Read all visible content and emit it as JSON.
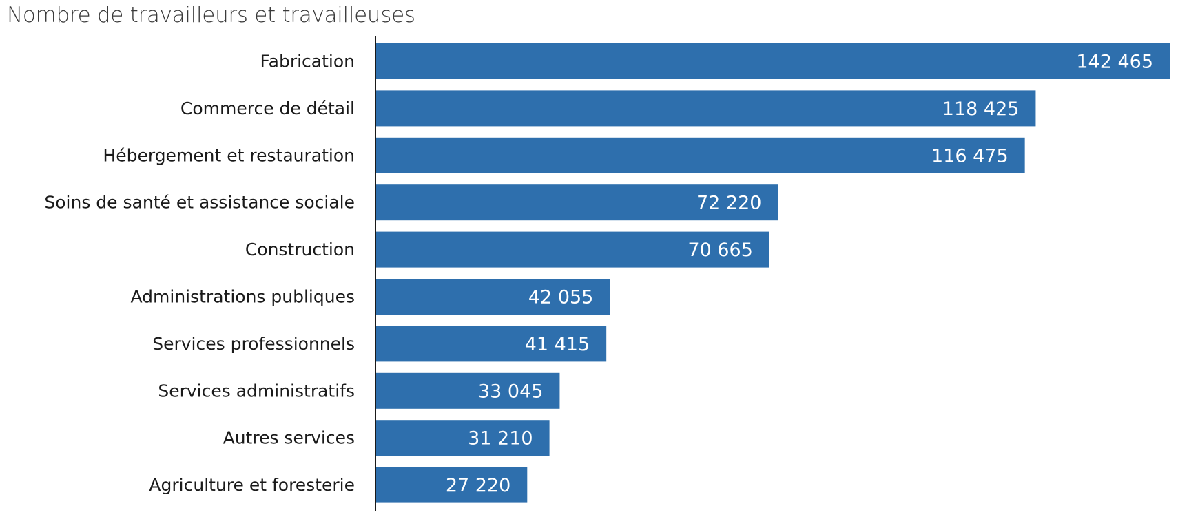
{
  "chart_data": {
    "type": "bar",
    "orientation": "horizontal",
    "title": "Nombre de travailleurs et travailleuses",
    "categories": [
      "Fabrication",
      "Commerce de détail",
      "Hébergement et restauration",
      "Soins de santé et assistance sociale",
      "Construction",
      "Administrations publiques",
      "Services professionnels",
      "Services administratifs",
      "Autres services",
      "Agriculture et foresterie"
    ],
    "values": [
      142465,
      118425,
      116475,
      72220,
      70665,
      42055,
      41415,
      33045,
      31210,
      27220
    ],
    "value_labels": [
      "142 465",
      "118 425",
      "116 475",
      "72 220",
      "70 665",
      "42 055",
      "41 415",
      "33 045",
      "31 210",
      "27 220"
    ],
    "xlim": [
      0,
      142465
    ],
    "grid": false,
    "legend": "none",
    "bar_color": "#2e6fad",
    "value_label_color": "#ffffff",
    "axis_color": "#1a1a1a"
  }
}
